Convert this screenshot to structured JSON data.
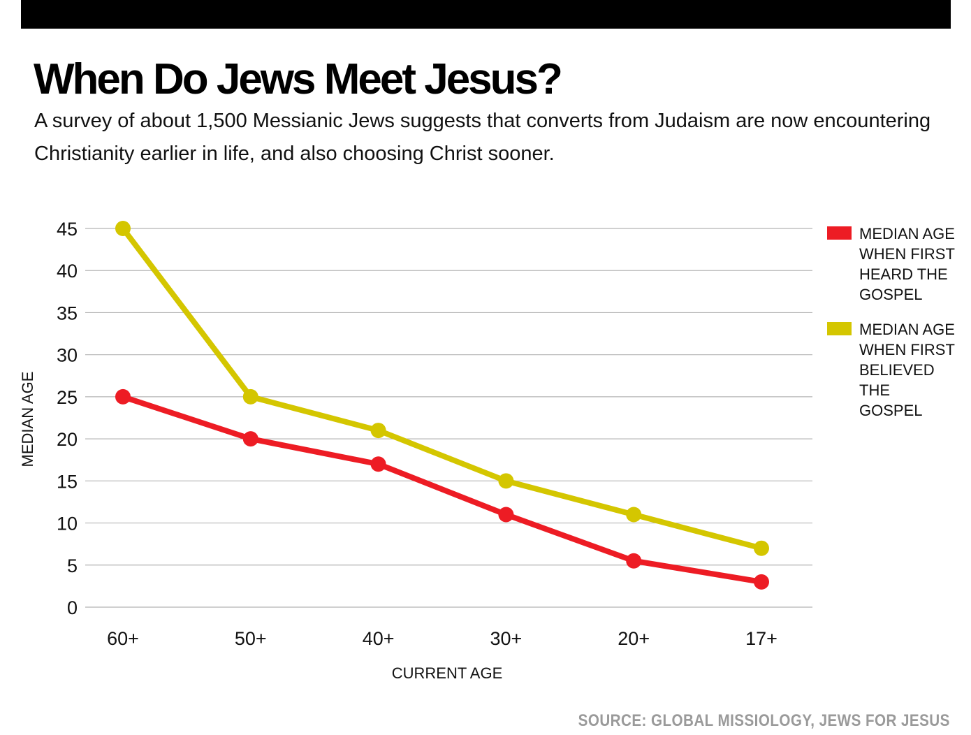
{
  "header": {
    "title": "When Do Jews Meet Jesus?",
    "subtitle": "A survey of about 1,500 Messianic Jews suggests that converts from Judaism are now encountering Christianity earlier in life, and also choosing Christ sooner."
  },
  "colors": {
    "top_bar": "#000000",
    "grid": "#b5b5b5",
    "source_text": "#9a9a9a"
  },
  "chart_data": {
    "type": "line",
    "xlabel": "CURRENT AGE",
    "ylabel": "MEDIAN AGE",
    "categories": [
      "60+",
      "50+",
      "40+",
      "30+",
      "20+",
      "17+"
    ],
    "ylim": [
      0,
      45
    ],
    "yticks": [
      0,
      5,
      10,
      15,
      20,
      25,
      30,
      35,
      40,
      45
    ],
    "grid": true,
    "legend_position": "right",
    "series": [
      {
        "name": "MEDIAN AGE WHEN FIRST HEARD THE GOSPEL",
        "color": "#ed1c24",
        "values": [
          25,
          20,
          17,
          11,
          5.5,
          3
        ]
      },
      {
        "name": "MEDIAN AGE WHEN FIRST BELIEVED THE GOSPEL",
        "color": "#d4c600",
        "values": [
          45,
          25,
          21,
          15,
          11,
          7
        ]
      }
    ]
  },
  "footer": {
    "source": "SOURCE: GLOBAL MISSIOLOGY, JEWS FOR JESUS"
  }
}
